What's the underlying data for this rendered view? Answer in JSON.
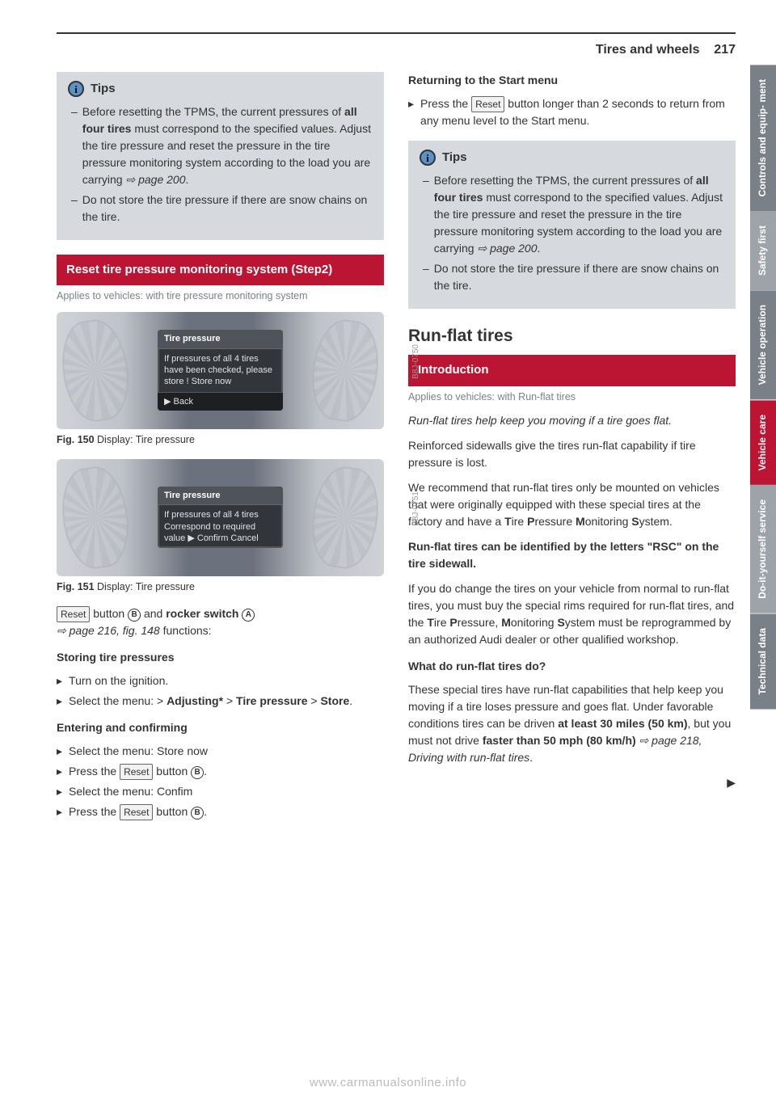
{
  "header": {
    "title": "Tires and wheels",
    "page_number": "217"
  },
  "tabs": [
    {
      "label": "Controls and equip-\nment",
      "bg": "#7a8088"
    },
    {
      "label": "Safety first",
      "bg": "#9ea3aa"
    },
    {
      "label": "Vehicle operation",
      "bg": "#7a8088"
    },
    {
      "label": "Vehicle care",
      "bg": "#bc1533"
    },
    {
      "label": "Do-it-yourself\nservice",
      "bg": "#9ea3aa"
    },
    {
      "label": "Technical data",
      "bg": "#7a8088"
    }
  ],
  "left": {
    "tips_title": "Tips",
    "tips_items": [
      "Before resetting the TPMS, the current pressures of <b>all four tires</b> must correspond to the specified values. Adjust the tire pressure and reset the pressure in the tire pressure monitoring system according to the load you are carrying <span class='pageref'>⇨ page 200</span>.",
      "Do not store the tire pressure if there are snow chains on the tire."
    ],
    "red_heading": "Reset tire pressure monitoring system (Step2)",
    "applies": "Applies to vehicles: with tire pressure monitoring system",
    "fig150": {
      "code": "B8J-0750",
      "title": "Tire pressure",
      "body": "If pressures of all 4 tires have been checked, please store ! Store now",
      "footer": "▶ Back",
      "caption_bold": "Fig. 150",
      "caption_rest": " Display: Tire pressure"
    },
    "fig151": {
      "code": "B8J-0751",
      "title": "Tire pressure",
      "body": "If pressures of all 4 tires Correspond to required value ▶ Confirm Cancel",
      "caption_bold": "Fig. 151",
      "caption_rest": " Display: Tire pressure"
    },
    "reset_para_pre": "Reset",
    "reset_para_mid": " button ",
    "reset_para_b": "B",
    "reset_para_and": " and ",
    "reset_para_rocker": "rocker switch ",
    "reset_para_a": "A",
    "reset_para_ref": " ⇨ page 216, fig. 148",
    "reset_para_tail": " functions:",
    "sub_storing": "Storing tire pressures",
    "storing_items": [
      "Turn on the ignition.",
      "Select the menu: > <b>Adjusting*</b> > <b>Tire pressure</b> > <b>Store</b>."
    ],
    "sub_entering": "Entering and confirming",
    "entering_items": [
      "Select the menu: Store now",
      "Press the <span class='reset-btn'>Reset</span> button <span class='circled'>B</span>.",
      "Select the menu: Confim",
      "Press the <span class='reset-btn'>Reset</span> button <span class='circled'>B</span>."
    ]
  },
  "right": {
    "sub_return": "Returning to the Start menu",
    "return_item": "Press the <span class='reset-btn'>Reset</span> button longer than 2 seconds to return from any menu level to the Start menu.",
    "tips_title": "Tips",
    "tips_items": [
      "Before resetting the TPMS, the current pressures of <b>all four tires</b> must correspond to the specified values. Adjust the tire pressure and reset the pressure in the tire pressure monitoring system according to the load you are carrying <span class='pageref'>⇨ page 200</span>.",
      "Do not store the tire pressure if there are snow chains on the tire."
    ],
    "section_title": "Run-flat tires",
    "red_heading": "Introduction",
    "applies": "Applies to vehicles: with Run-flat tires",
    "lead_italic": "Run-flat tires help keep you moving if a tire goes flat.",
    "p1": "Reinforced sidewalls give the tires run-flat capability if tire pressure is lost.",
    "p2": "We recommend that run-flat tires only be mounted on vehicles that were originally equipped with these special tires at the factory and have a <b>T</b>ire <b>P</b>ressure <b>M</b>onitoring <b>S</b>ystem.",
    "p3": "<b>Run-flat tires can be identified by the letters \"RSC\" on the tire sidewall.</b>",
    "p4": "If you do change the tires on your vehicle from normal to run-flat tires, you must buy the special rims required for run-flat tires, and the <b>T</b>ire <b>P</b>ressure, <b>M</b>onitoring <b>S</b>ystem must be reprogrammed by an authorized Audi dealer or other qualified workshop.",
    "sub_whatdo": "What do run-flat tires do?",
    "p5": "These special tires have run-flat capabilities that help keep you moving if a tire loses pressure and goes flat. Under favorable conditions tires can be driven <b>at least 30 miles (50 km)</b>, but you must not drive <b>faster than 50 mph (80 km/h)</b> <span class='pageref'>⇨ page 218, Driving with run-flat tires</span>.",
    "cont": "▶"
  },
  "footer_url": "www.carmanualsonline.info"
}
